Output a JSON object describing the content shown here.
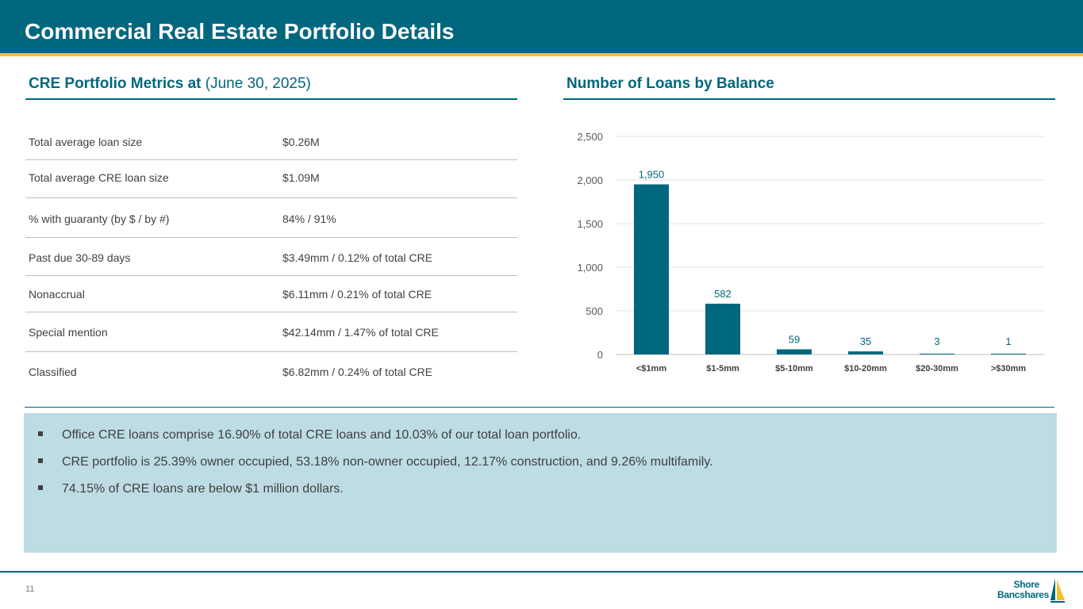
{
  "header": {
    "title": "Commercial Real Estate Portfolio Details"
  },
  "metrics": {
    "title_bold": "CRE Portfolio Metrics at",
    "title_light": "(June 30, 2025)",
    "rows": [
      {
        "label": "Total average loan size",
        "value": "$0.26M"
      },
      {
        "label": "Total average CRE loan size",
        "value": "$1.09M"
      },
      {
        "label": "% with guaranty (by $ / by #)",
        "value": "84% / 91%"
      },
      {
        "label": "Past due 30-89 days",
        "value": "$3.49mm / 0.12% of total CRE"
      },
      {
        "label": "Nonaccrual",
        "value": "$6.11mm / 0.21% of total CRE"
      },
      {
        "label": "Special mention",
        "value": "$42.14mm / 1.47% of total CRE"
      },
      {
        "label": "Classified",
        "value": "$6.82mm / 0.24% of total CRE"
      }
    ]
  },
  "chart_section": {
    "title": "Number of Loans by Balance"
  },
  "chart_data": {
    "type": "bar",
    "title": "Number of Loans by Balance",
    "categories": [
      "<$1mm",
      "$1-5mm",
      "$5-10mm",
      "$10-20mm",
      "$20-30mm",
      ">$30mm"
    ],
    "values": [
      1950,
      582,
      59,
      35,
      3,
      1
    ],
    "data_labels": [
      "1,950",
      "582",
      "59",
      "35",
      "3",
      "1"
    ],
    "ylim": [
      0,
      2500
    ],
    "yticks": [
      0,
      500,
      1000,
      1500,
      2000,
      2500
    ],
    "ytick_labels": [
      "0",
      "500",
      "1,000",
      "1,500",
      "2,000",
      "2,500"
    ],
    "xlabel": "",
    "ylabel": "",
    "grid": true,
    "bar_color": "#00677f"
  },
  "bullets": [
    "Office CRE loans comprise 16.90% of total CRE loans and 10.03% of our total loan portfolio.",
    "CRE portfolio is 25.39% owner occupied, 53.18% non-owner occupied, 12.17% construction, and 9.26% multifamily.",
    "74.15% of CRE loans are below $1 million dollars."
  ],
  "footer": {
    "page_number": "11",
    "logo_line1": "Shore",
    "logo_line2": "Bancshares"
  },
  "colors": {
    "brand_teal": "#00677f",
    "accent_gold": "#f2c12e",
    "bullet_bg": "#bddce4"
  }
}
